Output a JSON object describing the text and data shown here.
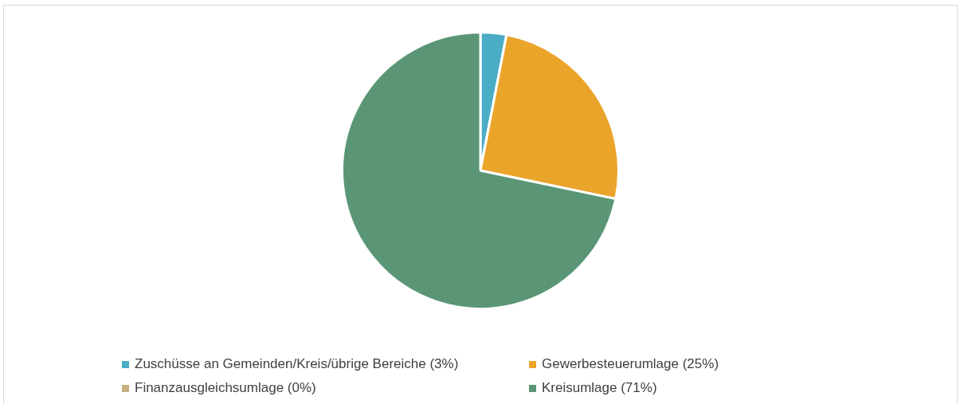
{
  "chart_data": {
    "type": "pie",
    "categories": [
      "Zuschüsse an Gemeinden/Kreis/übrige Bereiche (3%)",
      "Gewerbesteuerumlage (25%)",
      "Finanzausgleichsumlage (0%)",
      "Kreisumlage (71%)"
    ],
    "values": [
      3,
      25,
      0,
      71
    ],
    "colors": [
      "#4bacc6",
      "#eba42a",
      "#c4b07f",
      "#5a9675"
    ],
    "legend": "bottom"
  }
}
